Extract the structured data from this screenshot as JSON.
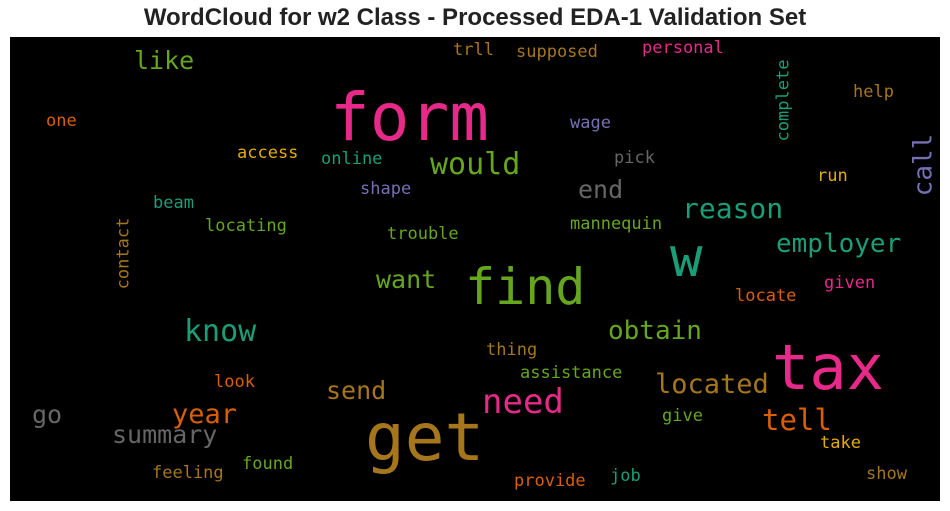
{
  "chart_data": {
    "type": "wordcloud",
    "title": "WordCloud for w2 Class - Processed EDA-1 Validation Set",
    "background": "#000000",
    "words": [
      {
        "text": "form",
        "color": "#e7298a"
      },
      {
        "text": "get",
        "color": "#a6761d"
      },
      {
        "text": "tax",
        "color": "#e7298a"
      },
      {
        "text": "find",
        "color": "#66a61e"
      },
      {
        "text": "w",
        "color": "#1b9e77"
      },
      {
        "text": "need",
        "color": "#e7298a"
      },
      {
        "text": "would",
        "color": "#66a61e"
      },
      {
        "text": "know",
        "color": "#1b9e77"
      },
      {
        "text": "reason",
        "color": "#1b9e77"
      },
      {
        "text": "employer",
        "color": "#1b9e77"
      },
      {
        "text": "located",
        "color": "#a6761d"
      },
      {
        "text": "tell",
        "color": "#d95f02"
      },
      {
        "text": "obtain",
        "color": "#66a61e"
      },
      {
        "text": "summary",
        "color": "#666666"
      },
      {
        "text": "year",
        "color": "#d95f02"
      },
      {
        "text": "call",
        "color": "#7570b3"
      },
      {
        "text": "end",
        "color": "#666666"
      },
      {
        "text": "want",
        "color": "#66a61e"
      },
      {
        "text": "send",
        "color": "#a6761d"
      },
      {
        "text": "go",
        "color": "#666666"
      },
      {
        "text": "like",
        "color": "#66a61e"
      },
      {
        "text": "complete",
        "color": "#1b9e77"
      },
      {
        "text": "contact",
        "color": "#a6761d"
      },
      {
        "text": "access",
        "color": "#e6ab02"
      },
      {
        "text": "online",
        "color": "#1b9e77"
      },
      {
        "text": "pick",
        "color": "#666666"
      },
      {
        "text": "wage",
        "color": "#7570b3"
      },
      {
        "text": "shape",
        "color": "#7570b3"
      },
      {
        "text": "beam",
        "color": "#1b9e77"
      },
      {
        "text": "locating",
        "color": "#66a61e"
      },
      {
        "text": "trouble",
        "color": "#66a61e"
      },
      {
        "text": "mannequin",
        "color": "#66a61e"
      },
      {
        "text": "run",
        "color": "#e6ab02"
      },
      {
        "text": "help",
        "color": "#a6761d"
      },
      {
        "text": "one",
        "color": "#d95f02"
      },
      {
        "text": "trll",
        "color": "#a6761d"
      },
      {
        "text": "supposed",
        "color": "#a6761d"
      },
      {
        "text": "personal",
        "color": "#e7298a"
      },
      {
        "text": "locate",
        "color": "#d95f02"
      },
      {
        "text": "given",
        "color": "#e7298a"
      },
      {
        "text": "thing",
        "color": "#a6761d"
      },
      {
        "text": "assistance",
        "color": "#66a61e"
      },
      {
        "text": "look",
        "color": "#d95f02"
      },
      {
        "text": "give",
        "color": "#66a61e"
      },
      {
        "text": "take",
        "color": "#e6ab02"
      },
      {
        "text": "found",
        "color": "#66a61e"
      },
      {
        "text": "feeling",
        "color": "#a6761d"
      },
      {
        "text": "provide",
        "color": "#d95f02"
      },
      {
        "text": "job",
        "color": "#1b9e77"
      },
      {
        "text": "show",
        "color": "#a6761d"
      }
    ]
  }
}
